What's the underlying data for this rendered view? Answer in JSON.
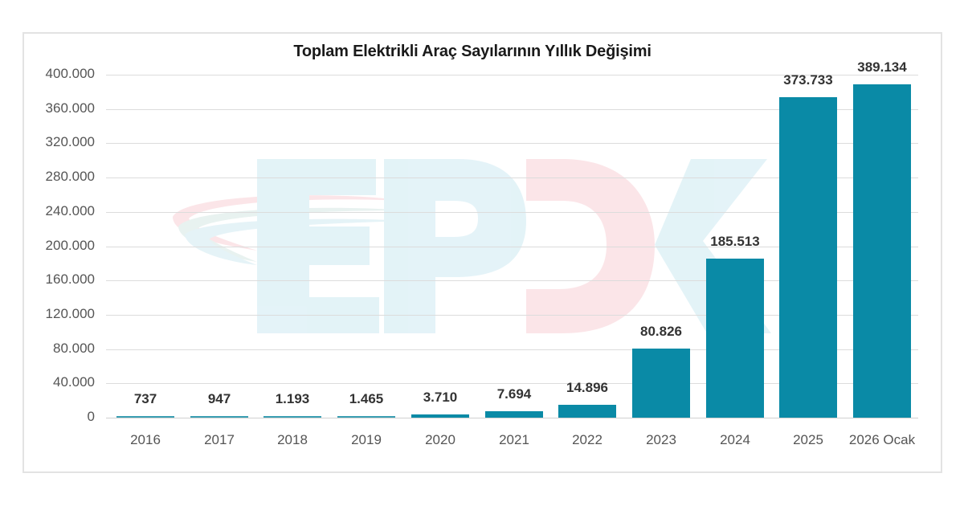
{
  "chart_data": {
    "type": "bar",
    "title": "Toplam Elektrikli Araç Sayılarının Yıllık Değişimi",
    "xlabel": "",
    "ylabel": "",
    "categories": [
      "2016",
      "2017",
      "2018",
      "2019",
      "2020",
      "2021",
      "2022",
      "2023",
      "2024",
      "2025",
      "2026 Ocak"
    ],
    "values": [
      737,
      947,
      1193,
      1465,
      3710,
      7694,
      14896,
      80826,
      185513,
      373733,
      389134
    ],
    "value_labels": [
      "737",
      "947",
      "1.193",
      "1.465",
      "3.710",
      "7.694",
      "14.896",
      "80.826",
      "185.513",
      "373.733",
      "389.134"
    ],
    "ylim": [
      0,
      400000
    ],
    "yticks": [
      0,
      40000,
      80000,
      120000,
      160000,
      200000,
      240000,
      280000,
      320000,
      360000,
      400000
    ],
    "ytick_labels": [
      "0",
      "40.000",
      "80.000",
      "120.000",
      "160.000",
      "200.000",
      "240.000",
      "280.000",
      "320.000",
      "360.000",
      "400.000"
    ],
    "grid": true,
    "legend": null,
    "bar_color": "#0a8aa6",
    "watermark": "EPDK"
  }
}
